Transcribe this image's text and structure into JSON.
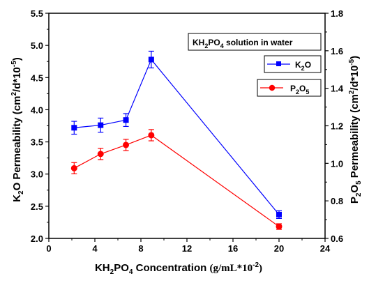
{
  "chart_data": {
    "type": "line",
    "title": "",
    "annotation": {
      "text": "KH",
      "sub1": "2",
      "text2": "PO",
      "sub2": "4",
      "text3": " solution in water"
    },
    "xlabel": {
      "t1": "KH",
      "s1": "2",
      "t2": "PO",
      "s2": "4",
      "t3": " Concentration ",
      "t4": "(g/mL*10",
      "sup": "-2",
      "t5": ")"
    },
    "ylabel_left": {
      "t1": "K",
      "s1": "2",
      "t2": "O Permeability (cm",
      "sup1": "2",
      "t3": "/d*10",
      "sup2": "-5",
      "t4": ")"
    },
    "ylabel_right": {
      "t1": "P",
      "s1": "2",
      "t2": "O",
      "s2": "5",
      "t3": " Permeability (cm",
      "sup1": "2",
      "t4": "/d*10",
      "sup2": "-5",
      "t5": ")"
    },
    "xlim": [
      0,
      24
    ],
    "ylim_left": [
      2.0,
      5.5
    ],
    "ylim_right": [
      0.6,
      1.8
    ],
    "x_ticks": [
      "0",
      "4",
      "8",
      "12",
      "16",
      "20",
      "24"
    ],
    "y_left_ticks": [
      "2.0",
      "2.5",
      "3.0",
      "3.5",
      "4.0",
      "4.5",
      "5.0",
      "5.5"
    ],
    "y_right_ticks": [
      "0.6",
      "0.8",
      "1.0",
      "1.2",
      "1.4",
      "1.6",
      "1.8"
    ],
    "series": [
      {
        "name_t1": "K",
        "name_s1": "2",
        "name_t2": "O",
        "name_t3": "",
        "axis": "left",
        "color": "#0000ff",
        "marker": "square",
        "x": [
          2.2,
          4.5,
          6.7,
          8.9,
          20.0
        ],
        "y": [
          3.72,
          3.76,
          3.84,
          4.78,
          2.37
        ],
        "err": [
          0.1,
          0.11,
          0.1,
          0.13,
          0.06
        ]
      },
      {
        "name_t1": "P",
        "name_s1": "2",
        "name_t2": "O",
        "name_s2": "5",
        "axis": "right",
        "color": "#ff0000",
        "marker": "circle",
        "x": [
          2.2,
          4.5,
          6.7,
          8.9,
          20.0
        ],
        "y": [
          0.974,
          1.05,
          1.098,
          1.15,
          0.663
        ],
        "err": [
          0.03,
          0.03,
          0.03,
          0.03,
          0.015
        ]
      }
    ],
    "legend_position": "right"
  }
}
